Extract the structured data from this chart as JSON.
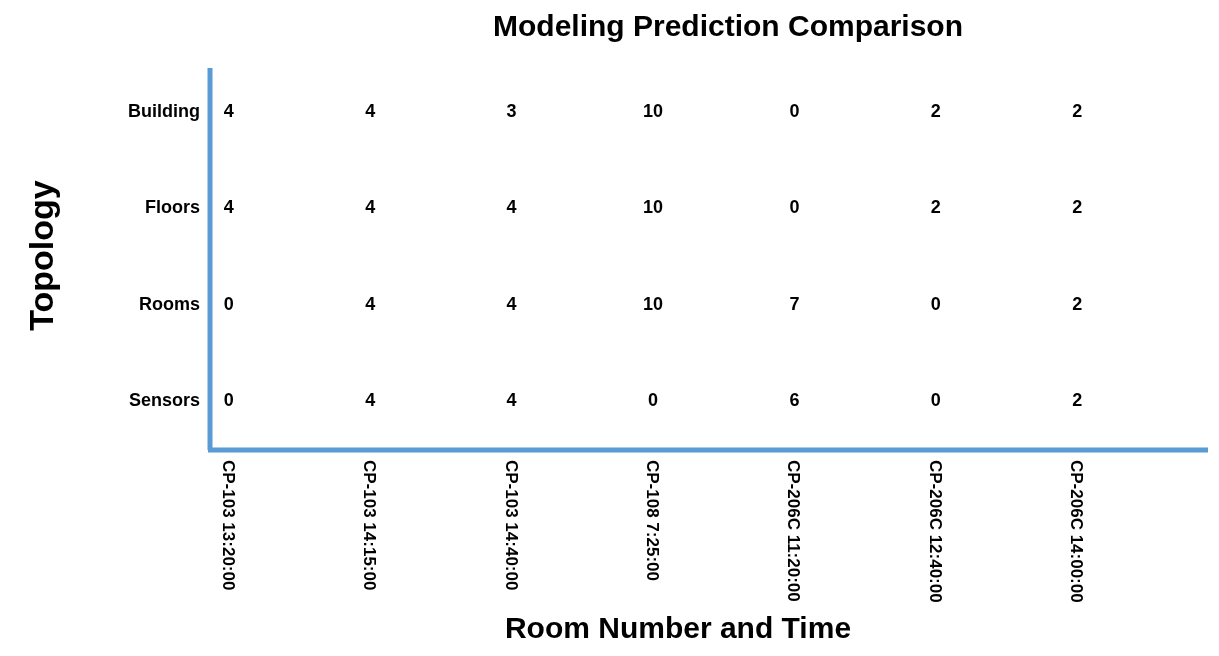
{
  "chart_data": {
    "type": "heatmap",
    "title": "Modeling Prediction Comparison",
    "xlabel": "Room Number and Time",
    "ylabel": "Topology",
    "categories": [
      "CP-103 13:20:00",
      "CP-103 14:15:00",
      "CP-103 14:40:00",
      "CP-108 7:25:00",
      "CP-206C 11:20:00",
      "CP-206C 12:40:00",
      "CP-206C 14:00:00"
    ],
    "y_categories": [
      "Building",
      "Floors",
      "Rooms",
      "Sensors"
    ],
    "cells": [
      [
        4,
        4,
        3,
        10,
        0,
        2,
        2
      ],
      [
        4,
        4,
        4,
        10,
        0,
        2,
        2
      ],
      [
        0,
        4,
        4,
        10,
        7,
        0,
        2
      ],
      [
        0,
        4,
        4,
        0,
        6,
        0,
        2
      ]
    ],
    "data_labels": true
  }
}
